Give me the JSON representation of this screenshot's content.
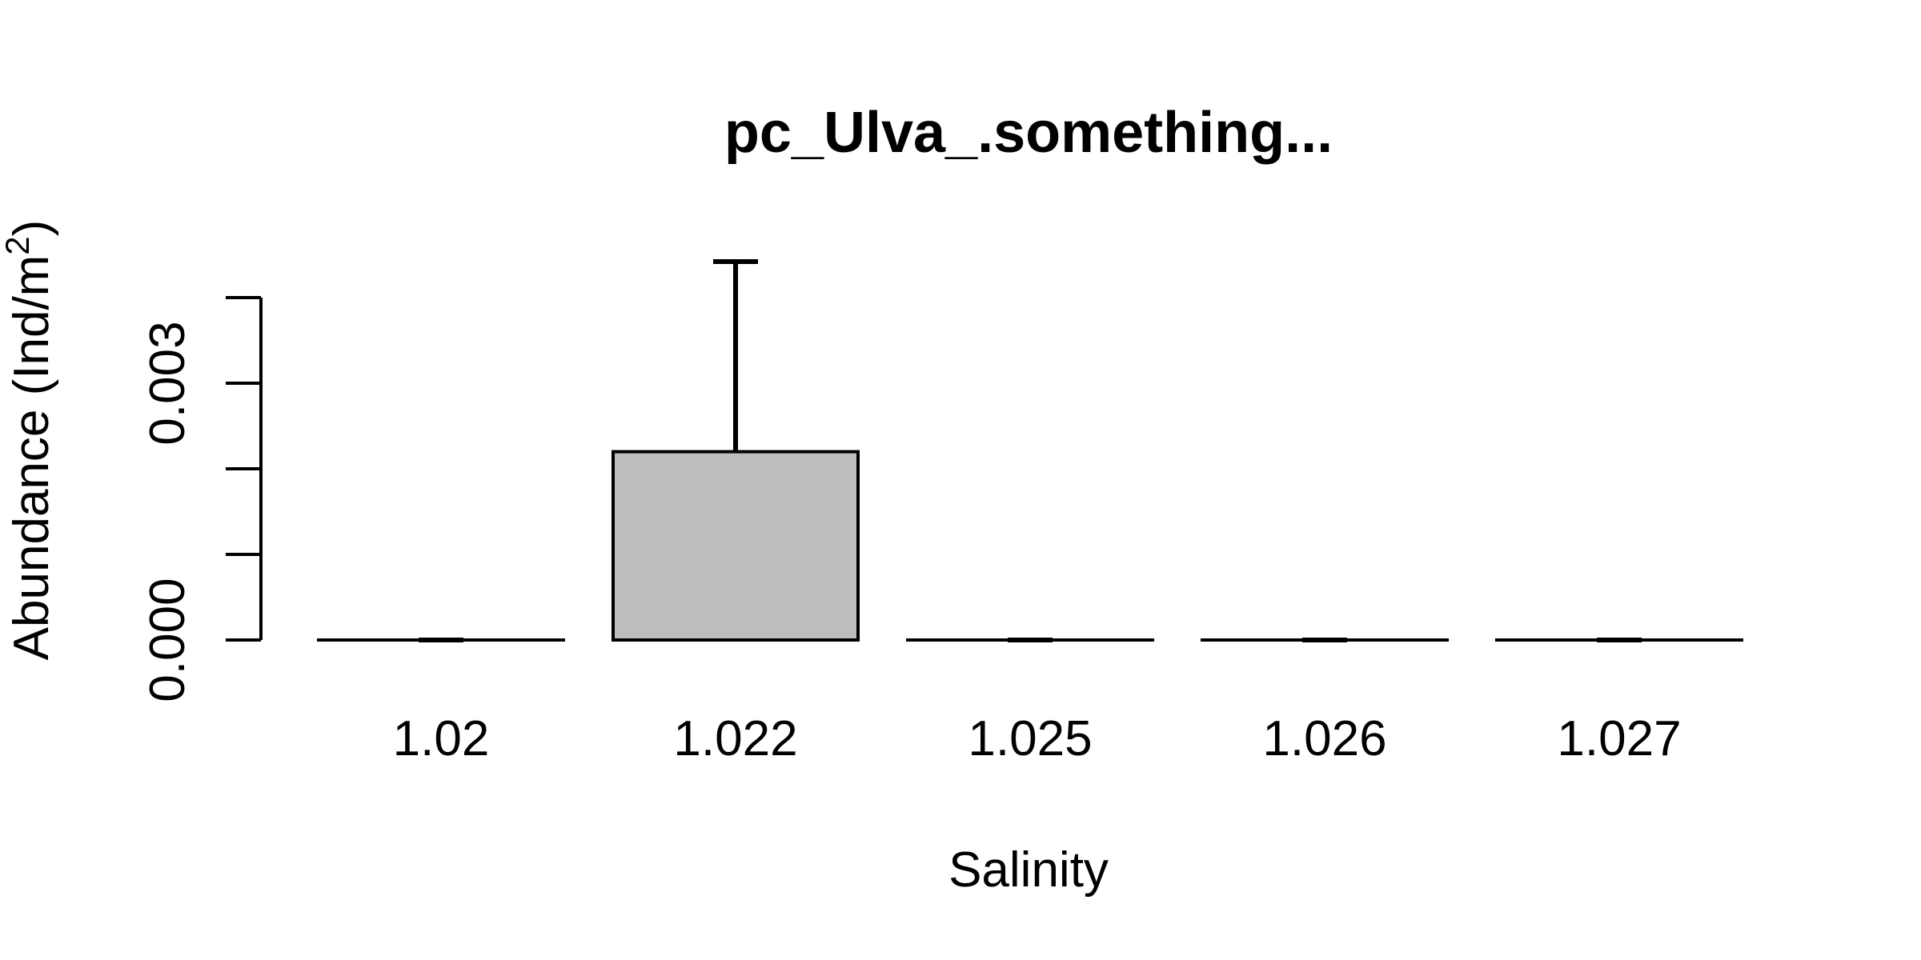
{
  "chart_data": {
    "type": "bar",
    "title": "pc_Ulva_.something...",
    "xlabel": "Salinity",
    "ylabel": "Abundance (Ind/m",
    "ylabel_superscript": "2",
    "ylabel_suffix": ")",
    "categories": [
      "1.02",
      "1.022",
      "1.025",
      "1.026",
      "1.027"
    ],
    "values": [
      0,
      0.0022,
      0,
      0,
      0
    ],
    "error_upper": [
      0,
      0.00442,
      0,
      0,
      0
    ],
    "ylim": [
      0,
      0.004
    ],
    "yticks": [
      0,
      0.001,
      0.002,
      0.003,
      0.004
    ],
    "ytick_labels": [
      "0.000",
      "",
      "",
      "0.003",
      ""
    ],
    "bar_color": "#bebebe",
    "grid": false,
    "legend": "none"
  }
}
